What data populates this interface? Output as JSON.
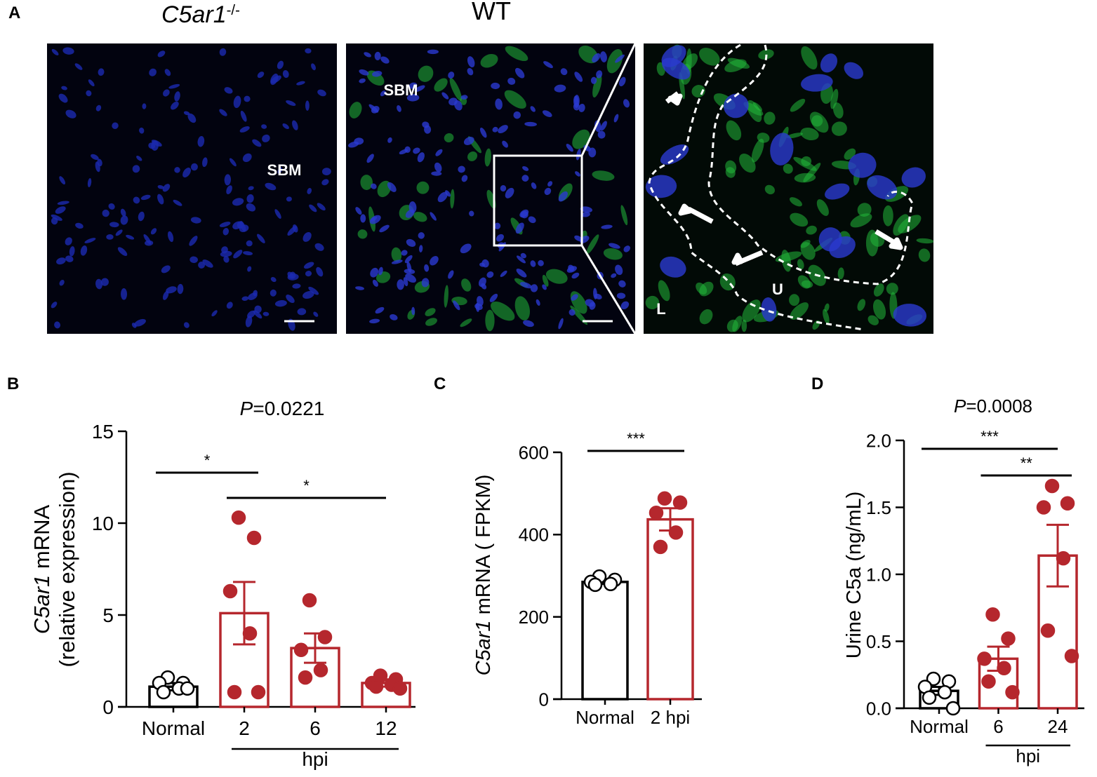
{
  "panel_a": {
    "panel_label": "A",
    "knockout": [
      {
        "text": "C5ar1",
        "italic": true
      },
      {
        "text": "-/-",
        "sup": true
      }
    ],
    "wt": "WT",
    "sbm_left": "SBM",
    "sbm_right": "SBM",
    "lumen": "L",
    "urothelium": "U"
  },
  "chart_data": [
    {
      "type": "bar",
      "panel_label": "B",
      "title": [
        {
          "text": "P",
          "italic": true
        },
        {
          "text": "=0.0221"
        }
      ],
      "ylabel": [
        [
          {
            "text": "C5ar1",
            "italic": true
          },
          {
            "text": " mRNA"
          }
        ],
        [
          {
            "text": "(relative expression)"
          }
        ]
      ],
      "categories": [
        "Normal",
        "2",
        "6",
        "12"
      ],
      "values": [
        1.1,
        5.1,
        3.2,
        1.3
      ],
      "errors": [
        0.2,
        1.7,
        0.8,
        0.2
      ],
      "points": [
        [
          1.6,
          1.3,
          1.3,
          1.0,
          0.8,
          1.0
        ],
        [
          10.3,
          9.2,
          6.3,
          4.0,
          0.8,
          0.8
        ],
        [
          5.8,
          3.8,
          3.1,
          2.0,
          1.6
        ],
        [
          1.7,
          1.5,
          1.3,
          1.2,
          1.1,
          1.0
        ]
      ],
      "colors": [
        "#000000",
        "#b5272d",
        "#b5272d",
        "#b5272d"
      ],
      "point_styles": [
        "open",
        "filled",
        "filled",
        "filled"
      ],
      "ylim": [
        0,
        15
      ],
      "yticks": [
        0,
        5,
        10,
        15
      ],
      "annotations": [
        {
          "text": "*",
          "from": 0,
          "to": 1
        },
        {
          "text": "*",
          "from": 1,
          "to": 3
        }
      ],
      "group_label": {
        "text": "hpi",
        "from": 1,
        "to": 3
      }
    },
    {
      "type": "bar",
      "panel_label": "C",
      "ylabel": [
        [
          {
            "text": "C5ar1",
            "italic": true
          },
          {
            "text": " mRNA ( FPKM)"
          }
        ]
      ],
      "categories": [
        "Normal",
        "2 hpi"
      ],
      "values": [
        285,
        437
      ],
      "errors": [
        5,
        27
      ],
      "points": [
        [
          298,
          290,
          285,
          280,
          278
        ],
        [
          488,
          478,
          453,
          405,
          370
        ]
      ],
      "colors": [
        "#000000",
        "#b5272d"
      ],
      "point_styles": [
        "open",
        "filled"
      ],
      "ylim": [
        0,
        600
      ],
      "yticks": [
        0,
        200,
        400,
        600
      ],
      "annotations": [
        {
          "text": "***",
          "from": 0,
          "to": 1
        }
      ]
    },
    {
      "type": "bar",
      "panel_label": "D",
      "title": [
        {
          "text": "P",
          "italic": true
        },
        {
          "text": "=0.0008"
        }
      ],
      "ylabel": [
        [
          {
            "text": "Urine C5a (ng/mL)"
          }
        ]
      ],
      "categories": [
        "Normal",
        "6",
        "24"
      ],
      "values": [
        0.13,
        0.37,
        1.14
      ],
      "errors": [
        0.03,
        0.09,
        0.23
      ],
      "points": [
        [
          0.22,
          0.2,
          0.16,
          0.12,
          0.08,
          0.0
        ],
        [
          0.7,
          0.52,
          0.37,
          0.3,
          0.2,
          0.12
        ],
        [
          1.66,
          1.53,
          1.5,
          1.12,
          0.58,
          0.39
        ]
      ],
      "colors": [
        "#000000",
        "#b5272d",
        "#b5272d"
      ],
      "point_styles": [
        "open",
        "filled",
        "filled"
      ],
      "ylim": [
        0,
        2
      ],
      "yticks": [
        {
          "value": 0,
          "label": "0.0"
        },
        {
          "value": 0.5,
          "label": "0.5"
        },
        {
          "value": 1,
          "label": "1.0"
        },
        {
          "value": 1.5,
          "label": "1.5"
        },
        {
          "value": 2,
          "label": "2.0"
        }
      ],
      "annotations": [
        {
          "text": "***",
          "from": 0,
          "to": 2
        },
        {
          "text": "**",
          "from": 1,
          "to": 2
        }
      ],
      "group_label": {
        "text": "hpi",
        "from": 1,
        "to": 2
      }
    }
  ]
}
